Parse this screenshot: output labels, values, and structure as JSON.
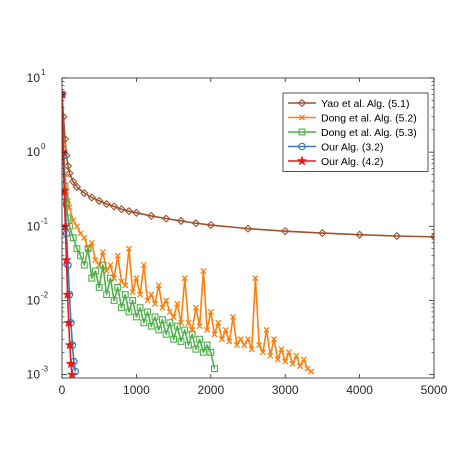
{
  "chart_data": {
    "type": "line",
    "xlabel": "",
    "ylabel": "",
    "xlim": [
      0,
      5000
    ],
    "ylim": [
      0.0009,
      10
    ],
    "yscale": "log",
    "grid": false,
    "legend_position": "top-right",
    "x_ticks": [
      {
        "value": 0,
        "label": "0"
      },
      {
        "value": 1000,
        "label": "1000"
      },
      {
        "value": 2000,
        "label": "2000"
      },
      {
        "value": 3000,
        "label": "3000"
      },
      {
        "value": 4000,
        "label": "4000"
      },
      {
        "value": 5000,
        "label": "5000"
      }
    ],
    "y_ticks": [
      {
        "value": 10,
        "base": "10",
        "exp": "1"
      },
      {
        "value": 1,
        "base": "10",
        "exp": "0"
      },
      {
        "value": 0.1,
        "base": "10",
        "exp": "-1"
      },
      {
        "value": 0.01,
        "base": "10",
        "exp": "-2"
      },
      {
        "value": 0.001,
        "base": "10",
        "exp": "-3"
      }
    ],
    "series": [
      {
        "name": "Yao et al. Alg. (5.1)",
        "color": "#a0522d",
        "marker": "diamond",
        "x": [
          0,
          20,
          40,
          60,
          80,
          100,
          150,
          200,
          300,
          400,
          500,
          600,
          700,
          800,
          900,
          1000,
          1200,
          1400,
          1600,
          1800,
          2000,
          2500,
          3000,
          3500,
          4000,
          4500,
          5000
        ],
        "y": [
          6.0,
          3.0,
          1.5,
          0.9,
          0.65,
          0.52,
          0.4,
          0.34,
          0.28,
          0.245,
          0.22,
          0.2,
          0.185,
          0.17,
          0.16,
          0.152,
          0.138,
          0.127,
          0.118,
          0.11,
          0.104,
          0.093,
          0.086,
          0.081,
          0.077,
          0.074,
          0.072
        ]
      },
      {
        "name": "Dong et al. Alg. (5.2)",
        "color": "#ff7f0e",
        "marker": "x",
        "x": [
          0,
          20,
          40,
          60,
          80,
          100,
          150,
          200,
          250,
          300,
          350,
          400,
          450,
          500,
          550,
          600,
          650,
          700,
          750,
          800,
          850,
          900,
          950,
          1000,
          1050,
          1100,
          1150,
          1200,
          1250,
          1300,
          1350,
          1400,
          1450,
          1500,
          1550,
          1600,
          1650,
          1700,
          1750,
          1800,
          1850,
          1900,
          1950,
          2000,
          2050,
          2100,
          2150,
          2200,
          2250,
          2300,
          2350,
          2400,
          2450,
          2500,
          2550,
          2600,
          2650,
          2700,
          2750,
          2800,
          2850,
          2900,
          2950,
          3000,
          3050,
          3100,
          3150,
          3200,
          3250,
          3300,
          3350
        ],
        "y": [
          6.0,
          1.2,
          0.5,
          0.3,
          0.22,
          0.18,
          0.12,
          0.1,
          0.08,
          0.07,
          0.05,
          0.06,
          0.035,
          0.03,
          0.045,
          0.025,
          0.03,
          0.02,
          0.04,
          0.018,
          0.016,
          0.05,
          0.013,
          0.02,
          0.012,
          0.03,
          0.01,
          0.012,
          0.009,
          0.016,
          0.008,
          0.01,
          0.007,
          0.006,
          0.009,
          0.005,
          0.02,
          0.005,
          0.004,
          0.008,
          0.0045,
          0.025,
          0.004,
          0.007,
          0.0035,
          0.005,
          0.003,
          0.004,
          0.0028,
          0.006,
          0.0025,
          0.003,
          0.0025,
          0.003,
          0.0022,
          0.02,
          0.0025,
          0.002,
          0.004,
          0.0018,
          0.003,
          0.0016,
          0.0022,
          0.0015,
          0.002,
          0.0014,
          0.0018,
          0.0013,
          0.0016,
          0.0012,
          0.0011
        ]
      },
      {
        "name": "Dong et al. Alg. (5.3)",
        "color": "#4daf4a",
        "marker": "square",
        "x": [
          0,
          20,
          40,
          60,
          80,
          100,
          150,
          200,
          250,
          300,
          350,
          400,
          450,
          500,
          550,
          600,
          650,
          700,
          750,
          800,
          850,
          900,
          950,
          1000,
          1050,
          1100,
          1150,
          1200,
          1250,
          1300,
          1350,
          1400,
          1450,
          1500,
          1550,
          1600,
          1650,
          1700,
          1750,
          1800,
          1850,
          1900,
          1950,
          2000,
          2050
        ],
        "y": [
          6.0,
          0.9,
          0.35,
          0.2,
          0.13,
          0.1,
          0.07,
          0.05,
          0.04,
          0.03,
          0.05,
          0.02,
          0.025,
          0.015,
          0.03,
          0.012,
          0.02,
          0.01,
          0.015,
          0.008,
          0.012,
          0.007,
          0.01,
          0.006,
          0.008,
          0.005,
          0.007,
          0.0045,
          0.006,
          0.004,
          0.0055,
          0.0035,
          0.005,
          0.003,
          0.0045,
          0.0028,
          0.004,
          0.0025,
          0.0035,
          0.0022,
          0.003,
          0.002,
          0.0025,
          0.002,
          0.0012
        ]
      },
      {
        "name": "Our Alg. (3.2)",
        "color": "#3a78b5",
        "marker": "circle",
        "x": [
          0,
          20,
          40,
          60,
          80,
          100,
          120,
          140,
          160,
          180
        ],
        "y": [
          6.0,
          0.9,
          0.25,
          0.08,
          0.03,
          0.012,
          0.005,
          0.0025,
          0.0015,
          0.0011
        ]
      },
      {
        "name": "Our Alg. (4.2)",
        "color": "#e41a1c",
        "marker": "star",
        "x": [
          0,
          15,
          30,
          45,
          60,
          75,
          90,
          105,
          120,
          135
        ],
        "y": [
          6.0,
          1.0,
          0.3,
          0.1,
          0.035,
          0.012,
          0.005,
          0.0025,
          0.0014,
          0.001
        ]
      }
    ]
  }
}
